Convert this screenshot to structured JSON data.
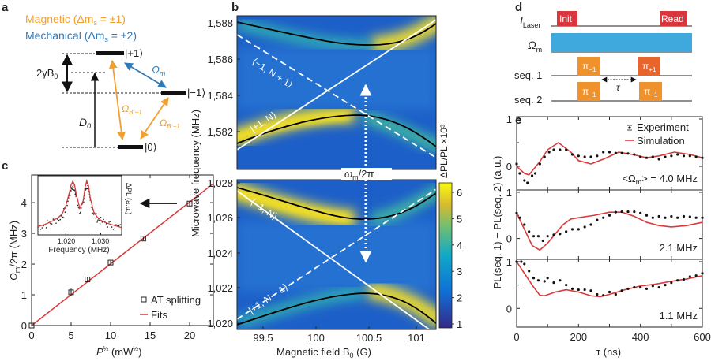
{
  "panel_labels": {
    "a": "a",
    "b": "b",
    "c": "c",
    "d": "d",
    "e": "e"
  },
  "colors": {
    "magnetic": "#f0a030",
    "mechanical": "#2f7ab8",
    "red": "#d93a3a",
    "laser": "#d9363e",
    "mw_bar": "#3fa8dc",
    "pulse": "#f0922c",
    "pulse_plus": "#e8642a"
  },
  "panel_a": {
    "legend_magnetic": "Magnetic (Δm",
    "legend_magnetic_sub": "s",
    "legend_magnetic_tail": " = ±1)",
    "legend_mechanical": "Mechanical (Δm",
    "legend_mechanical_sub": "s",
    "legend_mechanical_tail": " = ±2)",
    "state_plus1": "|+1⟩",
    "state_minus1": "|−1⟩",
    "state_zero": "|0⟩",
    "zeeman": "2γB",
    "zeeman_sub": "0",
    "d0": "D",
    "d0_sub": "0",
    "omega_m": "Ω",
    "omega_m_sub": "m",
    "omega_b_plus": "Ω",
    "omega_b_plus_sub": "B:+1",
    "omega_b_minus": "Ω",
    "omega_b_minus_sub": "B:−1"
  },
  "panel_b": {
    "ylabel": "Microwave frequency (MHz)",
    "xlabel": "Magnetic field B",
    "xlabel_sub": "0",
    "xlabel_tail": " (G)",
    "top_yticks": [
      "1,582",
      "1,584",
      "1,586",
      "1,588"
    ],
    "bottom_yticks": [
      "1,020",
      "1,022",
      "1,024",
      "1,026",
      "1,028"
    ],
    "xticks": [
      "99.5",
      "100",
      "100.5",
      "101"
    ],
    "colorbar_label": "ΔPL/PL ×10³",
    "colorbar_ticks": [
      "1",
      "2",
      "3",
      "4",
      "5",
      "6"
    ],
    "state_top_dashed": "⟨−1, N + 1⟩",
    "state_top_solid": "|+1, N⟩",
    "state_bottom_solid": "⟨−1, N⟩",
    "state_bottom_dashed": "|+1, N − 1⟩",
    "omega_label": "ω",
    "omega_sub": "m",
    "omega_tail": "/2π"
  },
  "panel_d": {
    "row_laser": "I",
    "row_laser_sub": "Laser",
    "row_mw": "Ω",
    "row_mw_sub": "m",
    "row_seq1": "seq. 1",
    "row_seq2": "seq. 2",
    "init": "Init",
    "read": "Read",
    "pi_minus": "π",
    "pi_minus_sub": "−1",
    "pi_plus": "π",
    "pi_plus_sub": "+1",
    "tau": "τ"
  },
  "chart_data": [
    {
      "id": "c",
      "type": "scatter",
      "xlabel": "P",
      "xlabel_sup": "½",
      "xlabel_tail": " (mW",
      "xlabel_tail_sup": "½",
      "xlabel_end": ")",
      "ylabel": "Ω",
      "ylabel_sub": "m",
      "ylabel_tail": "/2π (MHz)",
      "xlim": [
        0,
        23
      ],
      "ylim": [
        0,
        4.9
      ],
      "xticks": [
        0,
        5,
        10,
        15,
        20
      ],
      "yticks": [
        0,
        1,
        2,
        3,
        4
      ],
      "series": [
        {
          "name": "AT splitting",
          "type": "scatter",
          "x": [
            0,
            5,
            7.07,
            10,
            14.14,
            20
          ],
          "y": [
            0,
            1.08,
            1.5,
            2.05,
            2.83,
            3.97
          ],
          "err": [
            0.03,
            0.12,
            0.08,
            0.06,
            0.05,
            0.08
          ]
        },
        {
          "name": "Fits",
          "type": "line",
          "x": [
            0,
            23
          ],
          "y": [
            0,
            4.62
          ]
        }
      ],
      "legend": "bottom-right",
      "inset": {
        "xlabel": "Frequency (MHz)",
        "ylabel": "ΔPL (a.u.)",
        "xticks": [
          "1,020",
          "1,030"
        ],
        "xlim": [
          1012,
          1036
        ],
        "fit_x": [
          1012,
          1014,
          1016,
          1018,
          1019,
          1020,
          1021,
          1021.5,
          1022,
          1022.5,
          1023,
          1024,
          1025,
          1025.5,
          1026,
          1026.5,
          1027,
          1028,
          1029,
          1030,
          1032,
          1034,
          1036
        ],
        "fit_y": [
          0.1,
          0.14,
          0.2,
          0.28,
          0.35,
          0.5,
          0.75,
          0.9,
          0.97,
          0.9,
          0.72,
          0.45,
          0.6,
          0.85,
          0.98,
          0.88,
          0.65,
          0.38,
          0.28,
          0.22,
          0.16,
          0.12,
          0.08
        ]
      }
    },
    {
      "id": "e",
      "type": "line",
      "xlabel": "τ (ns)",
      "ylabel": "PL(seq. 1) − PL(seq. 2)  (a.u.)",
      "xlim": [
        0,
        600
      ],
      "xticks": [
        0,
        200,
        400,
        600
      ],
      "legend": [
        "Experiment",
        "Simulation"
      ],
      "legend_placement": "top-right",
      "panels": [
        {
          "label_pre": "<Ω",
          "label_sub": "m",
          "label_post": "> = 4.0 MHz",
          "ylim": [
            -0.5,
            1.05
          ],
          "yticks": [
            0,
            1
          ],
          "sim_x": [
            0,
            25,
            40,
            75,
            100,
            135,
            175,
            200,
            240,
            280,
            330,
            375,
            420,
            460,
            510,
            560,
            600
          ],
          "sim_y": [
            0,
            -0.15,
            -0.18,
            0.1,
            0.35,
            0.5,
            0.3,
            0.12,
            0.05,
            0.15,
            0.3,
            0.25,
            0.18,
            0.22,
            0.3,
            0.25,
            0.18
          ],
          "exp_x": [
            0,
            10,
            25,
            35,
            50,
            60,
            75,
            90,
            105,
            120,
            140,
            160,
            180,
            200,
            220,
            240,
            260,
            280,
            300,
            320,
            340,
            360,
            380,
            400,
            420,
            440,
            460,
            480,
            500,
            520,
            540,
            560,
            580,
            600
          ],
          "exp_y": [
            0.05,
            -0.15,
            -0.3,
            -0.35,
            -0.2,
            -0.15,
            0.05,
            0.2,
            0.3,
            0.35,
            0.35,
            0.35,
            0.25,
            0.22,
            0.2,
            0.2,
            0.22,
            0.3,
            0.3,
            0.28,
            0.28,
            0.27,
            0.25,
            0.2,
            0.18,
            0.2,
            0.15,
            0.2,
            0.22,
            0.25,
            0.22,
            0.22,
            0.2,
            0.18
          ]
        },
        {
          "label_pre": "",
          "label_sub": "",
          "label_post": "2.1 MHz",
          "ylim": [
            -0.45,
            1.05
          ],
          "yticks": [
            0,
            1
          ],
          "sim_x": [
            0,
            25,
            50,
            75,
            100,
            125,
            150,
            175,
            200,
            250,
            300,
            340,
            380,
            420,
            460,
            500,
            550,
            600
          ],
          "sim_y": [
            0.55,
            0.2,
            -0.15,
            -0.25,
            -0.1,
            0.1,
            0.3,
            0.42,
            0.45,
            0.5,
            0.57,
            0.57,
            0.48,
            0.35,
            0.28,
            0.25,
            0.28,
            0.35
          ],
          "exp_x": [
            0,
            10,
            25,
            40,
            55,
            70,
            85,
            100,
            120,
            140,
            160,
            180,
            200,
            220,
            240,
            260,
            280,
            300,
            320,
            340,
            360,
            380,
            400,
            420,
            440,
            460,
            480,
            500,
            520,
            540,
            560,
            580,
            600
          ],
          "exp_y": [
            0.55,
            0.45,
            0.3,
            0.15,
            0.05,
            0.05,
            -0.05,
            0.05,
            0.08,
            0.1,
            0.15,
            0.2,
            0.2,
            0.25,
            0.3,
            0.4,
            0.45,
            0.5,
            0.57,
            0.58,
            0.58,
            0.58,
            0.55,
            0.5,
            0.45,
            0.48,
            0.45,
            0.48,
            0.45,
            0.48,
            0.47,
            0.45,
            0.45
          ]
        },
        {
          "label_pre": "",
          "label_sub": "",
          "label_post": "1.1 MHz",
          "ylim": [
            -0.4,
            1.05
          ],
          "yticks": [
            0,
            1
          ],
          "sim_x": [
            0,
            25,
            50,
            75,
            90,
            125,
            160,
            200,
            240,
            270,
            300,
            350,
            400,
            450,
            500,
            550,
            600
          ],
          "sim_y": [
            1,
            0.75,
            0.5,
            0.28,
            0.27,
            0.35,
            0.4,
            0.35,
            0.27,
            0.25,
            0.3,
            0.4,
            0.48,
            0.52,
            0.58,
            0.63,
            0.7
          ],
          "exp_x": [
            0,
            15,
            25,
            40,
            55,
            70,
            90,
            100,
            120,
            140,
            160,
            180,
            200,
            220,
            240,
            260,
            280,
            300,
            320,
            340,
            360,
            380,
            400,
            420,
            440,
            460,
            480,
            500,
            520,
            540,
            560,
            580,
            600
          ],
          "exp_y": [
            1,
            1,
            0.95,
            0.8,
            0.65,
            0.6,
            0.58,
            0.65,
            0.55,
            0.6,
            0.5,
            0.42,
            0.4,
            0.4,
            0.38,
            0.3,
            0.28,
            0.35,
            0.3,
            0.38,
            0.42,
            0.45,
            0.45,
            0.42,
            0.48,
            0.45,
            0.5,
            0.55,
            0.6,
            0.62,
            0.68,
            0.7,
            0.75
          ]
        }
      ]
    }
  ]
}
